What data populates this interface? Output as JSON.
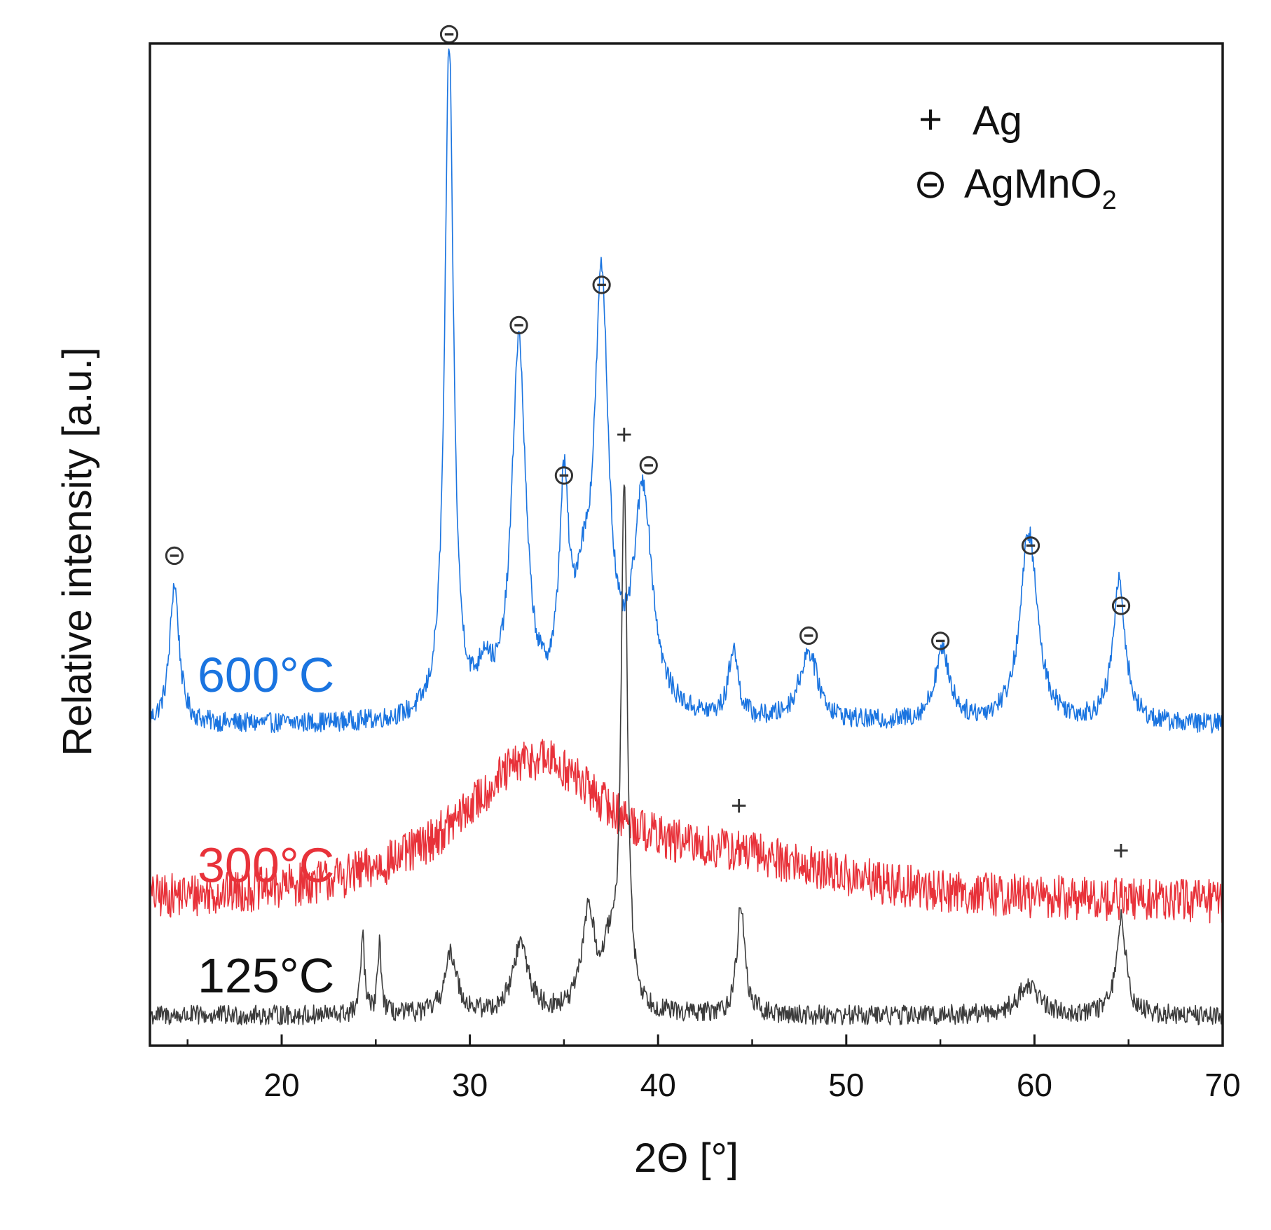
{
  "chart_data": {
    "type": "line",
    "title": "",
    "xlabel": "2Θ [°]",
    "ylabel": "Relative intensity [a.u.]",
    "xlim": [
      13,
      70
    ],
    "ylim": [
      0,
      100
    ],
    "xticks": [
      20,
      30,
      40,
      50,
      60,
      70
    ],
    "grid": false,
    "legend": {
      "placement": "top-right",
      "entries": [
        {
          "symbol": "+",
          "label": "Ag",
          "marker": "plus"
        },
        {
          "symbol": "⊝",
          "label": "AgMnO",
          "subscript": "2",
          "marker": "circle-minus"
        }
      ]
    },
    "series": [
      {
        "name": "600°C",
        "color": "#1a74e0",
        "baseline": 32,
        "noise": 1.0,
        "peaks": [
          {
            "x": 14.3,
            "height": 14,
            "width": 0.3
          },
          {
            "x": 28.9,
            "height": 67,
            "width": 0.28
          },
          {
            "x": 30.8,
            "height": 4,
            "width": 0.4
          },
          {
            "x": 32.6,
            "height": 37,
            "width": 0.45
          },
          {
            "x": 35.0,
            "height": 20,
            "width": 0.3
          },
          {
            "x": 36.0,
            "height": 9,
            "width": 0.6
          },
          {
            "x": 37.0,
            "height": 41,
            "width": 0.45
          },
          {
            "x": 39.2,
            "height": 22,
            "width": 0.6
          },
          {
            "x": 44.0,
            "height": 7,
            "width": 0.3
          },
          {
            "x": 48.0,
            "height": 7,
            "width": 0.6
          },
          {
            "x": 55.1,
            "height": 7,
            "width": 0.5
          },
          {
            "x": 59.7,
            "height": 19,
            "width": 0.55
          },
          {
            "x": 64.5,
            "height": 14,
            "width": 0.4
          }
        ]
      },
      {
        "name": "300°C",
        "color": "#e8323a",
        "baseline": 14,
        "noise": 2.2,
        "peaks": [
          {
            "x": 33.5,
            "height": 14,
            "width": 5.0
          },
          {
            "x": 45.0,
            "height": 3,
            "width": 6.0
          }
        ]
      },
      {
        "name": "125°C",
        "color": "#3c3c3c",
        "baseline": 3,
        "noise": 1.0,
        "peaks": [
          {
            "x": 24.3,
            "height": 8,
            "width": 0.12
          },
          {
            "x": 25.2,
            "height": 7,
            "width": 0.12
          },
          {
            "x": 29.0,
            "height": 6,
            "width": 0.4
          },
          {
            "x": 32.7,
            "height": 7,
            "width": 0.5
          },
          {
            "x": 36.3,
            "height": 10,
            "width": 0.4
          },
          {
            "x": 37.4,
            "height": 5,
            "width": 0.4
          },
          {
            "x": 38.2,
            "height": 52,
            "width": 0.2
          },
          {
            "x": 44.4,
            "height": 11,
            "width": 0.25
          },
          {
            "x": 59.7,
            "height": 3,
            "width": 0.7
          },
          {
            "x": 64.6,
            "height": 10,
            "width": 0.3
          }
        ]
      }
    ],
    "series_labels": [
      {
        "text": "600°C",
        "color": "#1a74e0",
        "y": 37
      },
      {
        "text": "300°C",
        "color": "#e8323a",
        "y": 18
      },
      {
        "text": "125°C",
        "color": "#111111",
        "y": 7
      }
    ],
    "annotations": [
      {
        "symbol": "⊝",
        "x": 14.3,
        "y": 49,
        "phase": "AgMnO2"
      },
      {
        "symbol": "⊝",
        "x": 28.9,
        "y": 101,
        "phase": "AgMnO2"
      },
      {
        "symbol": "⊝",
        "x": 32.6,
        "y": 72,
        "phase": "AgMnO2"
      },
      {
        "symbol": "⊝",
        "x": 35.0,
        "y": 57,
        "phase": "AgMnO2"
      },
      {
        "symbol": "⊝",
        "x": 37.0,
        "y": 76,
        "phase": "AgMnO2"
      },
      {
        "symbol": "⊝",
        "x": 39.5,
        "y": 58,
        "phase": "AgMnO2"
      },
      {
        "symbol": "⊝",
        "x": 48.0,
        "y": 41,
        "phase": "AgMnO2"
      },
      {
        "symbol": "⊝",
        "x": 55.0,
        "y": 40.5,
        "phase": "AgMnO2"
      },
      {
        "symbol": "⊝",
        "x": 59.8,
        "y": 50,
        "phase": "AgMnO2"
      },
      {
        "symbol": "⊝",
        "x": 64.6,
        "y": 44,
        "phase": "AgMnO2"
      },
      {
        "symbol": "+",
        "x": 38.2,
        "y": 61,
        "phase": "Ag"
      },
      {
        "symbol": "+",
        "x": 44.3,
        "y": 24,
        "phase": "Ag"
      },
      {
        "symbol": "+",
        "x": 64.6,
        "y": 19.5,
        "phase": "Ag"
      }
    ]
  }
}
